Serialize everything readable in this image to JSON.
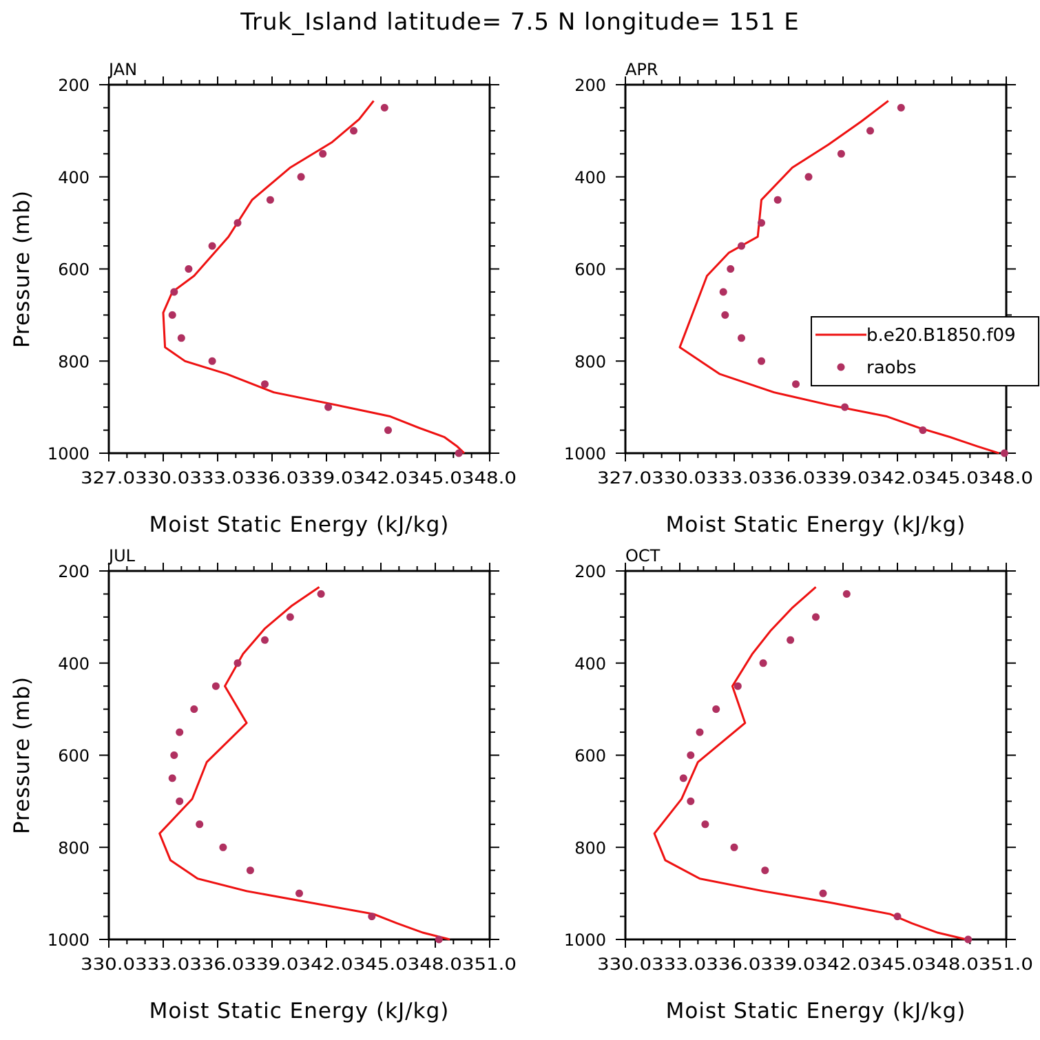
{
  "title": "Truk_Island  latitude= 7.5 N longitude= 151 E",
  "colors": {
    "model": "#ee1111",
    "obs": "#b03060",
    "axis": "#000000"
  },
  "legend": {
    "placement": "right-middle of APR panel",
    "model_label": "b.e20.B1850.f09",
    "obs_label": "raobs"
  },
  "chart_data": [
    {
      "type": "line",
      "panel": "JAN",
      "xlabel": "Moist Static Energy (kJ/kg)",
      "ylabel": "Pressure (mb)",
      "xlim": [
        327.0,
        348.0
      ],
      "ylim": [
        1000,
        200
      ],
      "x_tick_labels": [
        "327.0",
        "330.0",
        "333.0",
        "336.0",
        "339.0",
        "342.0",
        "345.0",
        "348.0"
      ],
      "y_ticks": [
        200,
        400,
        600,
        800,
        1000
      ],
      "series": [
        {
          "name": "b.e20.B1850.f09",
          "style": "line",
          "x": [
            341.6,
            340.8,
            339.3,
            337.0,
            334.9,
            333.6,
            331.7,
            330.5,
            330.0,
            330.1,
            331.2,
            333.5,
            336.1,
            339.5,
            342.5,
            344.1,
            345.5,
            346.2,
            346.6
          ],
          "y": [
            235,
            275,
            325,
            380,
            450,
            530,
            615,
            650,
            695,
            770,
            800,
            828,
            868,
            895,
            920,
            945,
            965,
            985,
            1000
          ]
        },
        {
          "name": "raobs",
          "style": "markers",
          "x": [
            342.2,
            340.5,
            338.8,
            337.6,
            335.9,
            334.1,
            332.7,
            331.4,
            330.6,
            330.5,
            331.0,
            332.7,
            335.6,
            339.1,
            342.4,
            346.3
          ],
          "y": [
            250,
            300,
            350,
            400,
            450,
            500,
            550,
            600,
            650,
            700,
            750,
            800,
            850,
            900,
            950,
            1000
          ]
        }
      ]
    },
    {
      "type": "line",
      "panel": "APR",
      "xlabel": "Moist Static Energy (kJ/kg)",
      "ylabel": "",
      "xlim": [
        327.0,
        348.0
      ],
      "ylim": [
        1000,
        200
      ],
      "x_tick_labels": [
        "327.0",
        "330.0",
        "333.0",
        "336.0",
        "339.0",
        "342.0",
        "345.0",
        "348.0"
      ],
      "y_ticks": [
        200,
        400,
        600,
        800,
        1000
      ],
      "series": [
        {
          "name": "b.e20.B1850.f09",
          "style": "line",
          "x": [
            341.5,
            340.0,
            338.2,
            336.2,
            334.5,
            334.3,
            332.7,
            331.5,
            330.0,
            332.2,
            335.2,
            338.2,
            341.4,
            343.2,
            344.9,
            346.4,
            347.6
          ],
          "y": [
            235,
            280,
            330,
            380,
            450,
            530,
            565,
            615,
            770,
            828,
            868,
            895,
            920,
            945,
            965,
            985,
            1000
          ]
        },
        {
          "name": "raobs",
          "style": "markers",
          "x": [
            342.2,
            340.5,
            338.9,
            337.1,
            335.4,
            334.5,
            333.4,
            332.8,
            332.4,
            332.5,
            333.4,
            334.5,
            336.4,
            339.1,
            343.4,
            347.9
          ],
          "y": [
            250,
            300,
            350,
            400,
            450,
            500,
            550,
            600,
            650,
            700,
            750,
            800,
            850,
            900,
            950,
            1000
          ]
        }
      ]
    },
    {
      "type": "line",
      "panel": "JUL",
      "xlabel": "Moist Static Energy (kJ/kg)",
      "ylabel": "Pressure (mb)",
      "xlim": [
        330.0,
        351.0
      ],
      "ylim": [
        1000,
        200
      ],
      "x_tick_labels": [
        "330.0",
        "333.0",
        "336.0",
        "339.0",
        "342.0",
        "345.0",
        "348.0",
        "351.0"
      ],
      "y_ticks": [
        200,
        400,
        600,
        800,
        1000
      ],
      "series": [
        {
          "name": "b.e20.B1850.f09",
          "style": "line",
          "x": [
            341.6,
            340.1,
            338.6,
            337.4,
            336.4,
            337.6,
            335.4,
            334.6,
            332.8,
            333.4,
            334.9,
            337.6,
            341.1,
            344.6,
            345.9,
            347.3,
            348.8
          ],
          "y": [
            235,
            275,
            325,
            380,
            450,
            530,
            615,
            695,
            770,
            828,
            868,
            895,
            920,
            945,
            965,
            985,
            1000
          ]
        },
        {
          "name": "raobs",
          "style": "markers",
          "x": [
            341.7,
            340.0,
            338.6,
            337.1,
            335.9,
            334.7,
            333.9,
            333.6,
            333.5,
            333.9,
            335.0,
            336.3,
            337.8,
            340.5,
            344.5,
            348.2
          ],
          "y": [
            250,
            300,
            350,
            400,
            450,
            500,
            550,
            600,
            650,
            700,
            750,
            800,
            850,
            900,
            950,
            1000
          ]
        }
      ]
    },
    {
      "type": "line",
      "panel": "OCT",
      "xlabel": "Moist Static Energy (kJ/kg)",
      "ylabel": "",
      "xlim": [
        330.0,
        351.0
      ],
      "ylim": [
        1000,
        200
      ],
      "x_tick_labels": [
        "330.0",
        "333.0",
        "336.0",
        "339.0",
        "342.0",
        "345.0",
        "348.0",
        "351.0"
      ],
      "y_ticks": [
        200,
        400,
        600,
        800,
        1000
      ],
      "series": [
        {
          "name": "b.e20.B1850.f09",
          "style": "line",
          "x": [
            340.5,
            339.2,
            338.0,
            337.0,
            335.9,
            336.6,
            334.0,
            333.1,
            331.6,
            332.2,
            334.1,
            337.6,
            341.3,
            344.6,
            345.8,
            347.2,
            348.8
          ],
          "y": [
            235,
            280,
            330,
            380,
            450,
            530,
            615,
            695,
            770,
            828,
            868,
            895,
            920,
            945,
            965,
            985,
            1000
          ]
        },
        {
          "name": "raobs",
          "style": "markers",
          "x": [
            342.2,
            340.5,
            339.1,
            337.6,
            336.2,
            335.0,
            334.1,
            333.6,
            333.2,
            333.6,
            334.4,
            336.0,
            337.7,
            340.9,
            345.0,
            348.9
          ],
          "y": [
            250,
            300,
            350,
            400,
            450,
            500,
            550,
            600,
            650,
            700,
            750,
            800,
            850,
            900,
            950,
            1000
          ]
        }
      ]
    }
  ]
}
